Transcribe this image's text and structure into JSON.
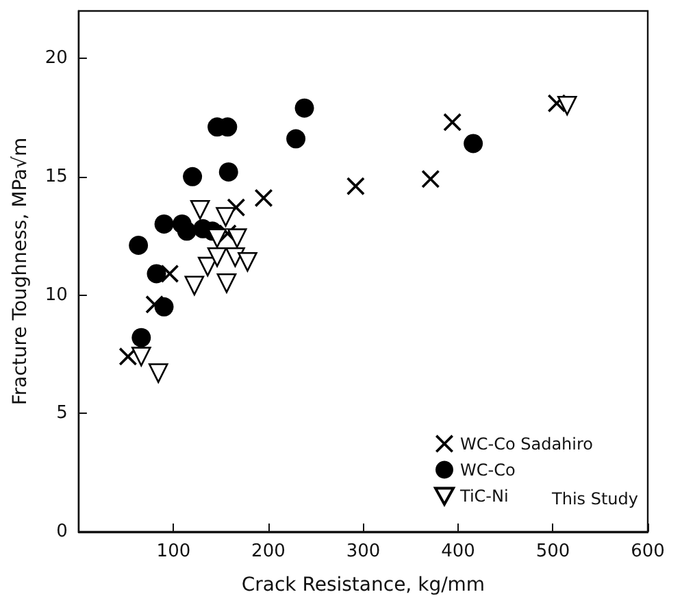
{
  "chart_data": {
    "type": "scatter",
    "xlabel": "Crack Resistance, kg/mm",
    "ylabel": "Fracture Toughness, MPa√m",
    "xlim": [
      0,
      600
    ],
    "xticks": [
      {
        "value": 0,
        "label": null
      },
      100,
      200,
      300,
      400,
      500,
      600
    ],
    "ylim": [
      0,
      22
    ],
    "yticks": [
      0,
      5,
      10,
      15,
      20
    ],
    "grid": false,
    "legend": "bottom right",
    "annotations": [
      "This Study"
    ],
    "series": [
      {
        "name": "WC-Co Sadahiro",
        "color": "#000000",
        "marker": "cross",
        "x": [
          52,
          80,
          96,
          157,
          166,
          195,
          292,
          371,
          394,
          504
        ],
        "values": [
          7.4,
          9.6,
          10.9,
          12.6,
          13.7,
          14.1,
          14.6,
          14.9,
          17.3,
          18.1
        ]
      },
      {
        "name": "WC-Co",
        "color": "#000000",
        "marker": "circle",
        "x": [
          66,
          90,
          82,
          63,
          90,
          109,
          114,
          131,
          141,
          120,
          158,
          146,
          157,
          229,
          238,
          416
        ],
        "values": [
          8.2,
          9.5,
          10.9,
          12.1,
          13.0,
          13.0,
          12.7,
          12.8,
          12.7,
          15.0,
          15.2,
          17.1,
          17.1,
          16.6,
          17.9,
          16.4
        ]
      },
      {
        "name": "TiC-Ni",
        "color": "#000000",
        "marker": "triangle",
        "x": [
          66,
          84,
          122,
          156,
          136,
          146,
          165,
          178,
          146,
          167,
          155,
          128,
          515
        ],
        "values": [
          7.4,
          6.7,
          10.4,
          10.5,
          11.2,
          11.6,
          11.6,
          11.4,
          12.4,
          12.4,
          13.3,
          13.6,
          18.0
        ]
      }
    ]
  }
}
